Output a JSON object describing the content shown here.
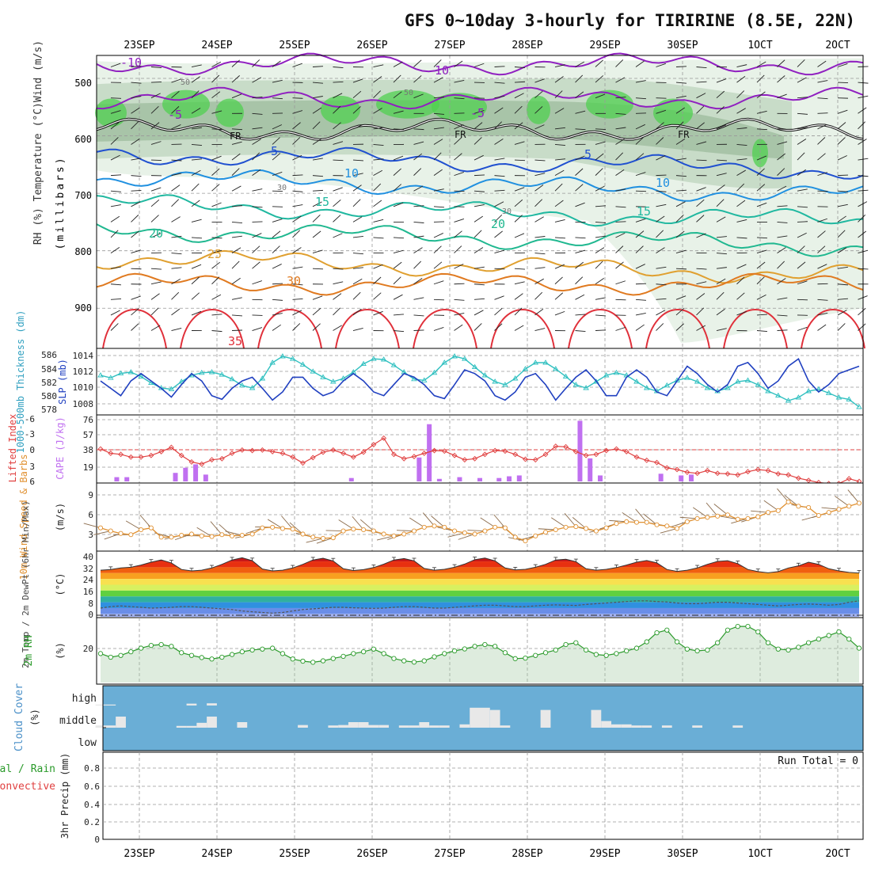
{
  "title": "GFS 0~10day 3-hourly for TIRIRINE (8.5E, 22N)",
  "date_labels": [
    "23SEP",
    "24SEP",
    "25SEP",
    "26SEP",
    "27SEP",
    "28SEP",
    "29SEP",
    "30SEP",
    "1OCT",
    "2OCT"
  ],
  "colors": {
    "temp_35": "#e0303a",
    "temp_30": "#e07a20",
    "temp_25": "#e0a030",
    "temp_20": "#20b890",
    "temp_15": "#20b8a0",
    "temp_10": "#2090e0",
    "temp_5": "#2050d0",
    "temp_m5": "#9020c0",
    "rh_green": "#50d050",
    "slp": "#2040c0",
    "thickness": "#30c0c0",
    "lifted_index": "#e04040",
    "cape": "#c070f0",
    "wind": "#e09030",
    "cloud": "#6aaed6",
    "rh2m": "#2a9a2a"
  },
  "chart_data": [
    {
      "panel": "upper-air",
      "type": "line",
      "title": "Temperature (°C) / Wind (m/s) / RH (%)",
      "ylabel_left": "RH (%)  Temperature (°C)Wind (m/s)",
      "ylabel_inner": "(millibars)",
      "y_ticks": [
        500,
        600,
        700,
        800,
        900
      ],
      "ylim": [
        970,
        460
      ],
      "contour_labels": [
        {
          "text": "-10",
          "color_key": "temp_m5"
        },
        {
          "text": "-10",
          "color_key": "temp_m5"
        },
        {
          "text": "-5",
          "color_key": "temp_m5"
        },
        {
          "text": "-5",
          "color_key": "temp_m5"
        },
        {
          "text": "FR",
          "color_key": ""
        },
        {
          "text": "FR",
          "color_key": ""
        },
        {
          "text": "FR",
          "color_key": ""
        },
        {
          "text": "5",
          "color_key": "temp_5"
        },
        {
          "text": "5",
          "color_key": "temp_5"
        },
        {
          "text": "10",
          "color_key": "temp_10"
        },
        {
          "text": "10",
          "color_key": "temp_10"
        },
        {
          "text": "15",
          "color_key": "temp_15"
        },
        {
          "text": "15",
          "color_key": "temp_15"
        },
        {
          "text": "20",
          "color_key": "temp_20"
        },
        {
          "text": "20",
          "color_key": "temp_20"
        },
        {
          "text": "25",
          "color_key": "temp_25"
        },
        {
          "text": "30",
          "color_key": "temp_30"
        },
        {
          "text": "35",
          "color_key": "temp_35"
        },
        {
          "text": "30",
          "color_key": ""
        },
        {
          "text": "30",
          "color_key": ""
        },
        {
          "text": "50",
          "color_key": ""
        },
        {
          "text": "50",
          "color_key": ""
        }
      ],
      "isotherms_mb": [
        {
          "label": "-10",
          "mb": 475,
          "color_key": "temp_m5"
        },
        {
          "label": "-5",
          "mb": 535,
          "color_key": "temp_m5"
        },
        {
          "label": "0",
          "mb": 590,
          "color_key": ""
        },
        {
          "label": "5",
          "mb": 630,
          "color_key": "temp_5"
        },
        {
          "label": "10",
          "mb": 672,
          "color_key": "temp_10"
        },
        {
          "label": "15",
          "mb": 718,
          "color_key": "temp_15"
        },
        {
          "label": "20",
          "mb": 762,
          "color_key": "temp_20"
        },
        {
          "label": "25",
          "mb": 812,
          "color_key": "temp_25"
        },
        {
          "label": "30",
          "mb": 858,
          "color_key": "temp_30"
        }
      ]
    },
    {
      "panel": "slp-thickness",
      "type": "line",
      "ylabel_left": "1000-500mb Thickness (dm)",
      "ylabel_right": "SLP (mb)",
      "left_ticks": [
        "586",
        "584",
        "582",
        "580",
        "578"
      ],
      "right_ticks": [
        "1014",
        "1012",
        "1010",
        "1008"
      ],
      "left_range": [
        577,
        587
      ],
      "right_range": [
        1006.6,
        1015.2
      ],
      "series": [
        {
          "name": "SLP",
          "color_key": "slp",
          "values": [
            1011.0,
            1010.0,
            1009.0,
            1011.0,
            1012.0,
            1011.0,
            1010.0,
            1008.8,
            1010.5,
            1012.0,
            1011.0,
            1009.0,
            1008.5,
            1010.0,
            1011.0,
            1011.5,
            1010.0,
            1008.4,
            1009.5,
            1011.5,
            1011.5,
            1010.0,
            1009.0,
            1009.5,
            1011.0,
            1012.0,
            1011.0,
            1009.5,
            1009.0,
            1010.5,
            1012.0,
            1011.5,
            1010.5,
            1009.0,
            1008.6,
            1010.5,
            1012.5,
            1012.0,
            1011.0,
            1009.0,
            1008.4,
            1009.5,
            1011.5,
            1012.0,
            1010.5,
            1008.4,
            1010.0,
            1011.5,
            1012.5,
            1011.0,
            1009.0,
            1009.0,
            1011.5,
            1012.5,
            1011.5,
            1009.5,
            1009.0,
            1011.0,
            1013.0,
            1012.0,
            1010.5,
            1009.5,
            1010.5,
            1013.0,
            1013.5,
            1012.0,
            1010.0,
            1011.0,
            1013.0,
            1014.0,
            1011.0,
            1009.5,
            1010.5,
            1012.0,
            1012.5,
            1013.0
          ]
        },
        {
          "name": "Thickness",
          "color_key": "thickness",
          "values": [
            583.0,
            582.6,
            583.3,
            583.5,
            582.8,
            581.8,
            581.0,
            580.8,
            582.0,
            583.0,
            583.4,
            583.5,
            583.1,
            582.4,
            581.4,
            581.0,
            582.5,
            585.0,
            586.0,
            585.6,
            584.7,
            583.6,
            582.7,
            582.0,
            582.5,
            583.5,
            584.8,
            585.6,
            585.5,
            584.6,
            583.5,
            582.4,
            582.2,
            583.4,
            585.0,
            586.0,
            585.6,
            584.3,
            583.0,
            582.0,
            581.5,
            582.5,
            584.0,
            585.0,
            585.0,
            584.0,
            582.8,
            581.5,
            581.0,
            582.0,
            583.0,
            583.4,
            583.0,
            582.0,
            581.0,
            580.5,
            581.4,
            582.2,
            582.6,
            582.0,
            581.0,
            580.5,
            581.0,
            582.0,
            582.2,
            581.5,
            580.5,
            579.8,
            579.0,
            579.5,
            580.5,
            580.8,
            580.2,
            579.5,
            579.2,
            578.0
          ]
        }
      ]
    },
    {
      "panel": "cape-li",
      "type": "bar",
      "ylabel_left": "Lifted Index",
      "ylabel_right": "CAPE (J/kg)",
      "li_ticks": [
        "-6",
        "-3",
        "0",
        "3",
        "6"
      ],
      "cape_ticks": [
        "76",
        "57",
        "38",
        "19"
      ],
      "li_range": [
        -6,
        6
      ],
      "cape_range": [
        0,
        76
      ],
      "cape_bars": [
        {
          "t": 1.6,
          "v": 5
        },
        {
          "t": 2.6,
          "v": 5
        },
        {
          "t": 7.4,
          "v": 10
        },
        {
          "t": 8.4,
          "v": 16
        },
        {
          "t": 9.4,
          "v": 20
        },
        {
          "t": 10.4,
          "v": 8
        },
        {
          "t": 24.8,
          "v": 4
        },
        {
          "t": 31.5,
          "v": 28
        },
        {
          "t": 32.5,
          "v": 67
        },
        {
          "t": 33.5,
          "v": 3
        },
        {
          "t": 35.5,
          "v": 5
        },
        {
          "t": 37.5,
          "v": 4
        },
        {
          "t": 39.4,
          "v": 4
        },
        {
          "t": 40.4,
          "v": 6
        },
        {
          "t": 41.4,
          "v": 7
        },
        {
          "t": 47.4,
          "v": 71
        },
        {
          "t": 48.4,
          "v": 27
        },
        {
          "t": 49.4,
          "v": 7
        },
        {
          "t": 55.4,
          "v": 9
        },
        {
          "t": 57.4,
          "v": 7
        },
        {
          "t": 58.4,
          "v": 8
        }
      ],
      "lifted_index": [
        0.0,
        0.8,
        1.0,
        1.5,
        1.5,
        1.2,
        0.5,
        -0.3,
        1.2,
        2.4,
        2.8,
        2.0,
        1.8,
        0.8,
        0.2,
        0.3,
        0.2,
        0.5,
        0.8,
        1.5,
        2.6,
        1.6,
        0.6,
        0.2,
        0.8,
        1.5,
        0.6,
        -0.8,
        -2.0,
        1.0,
        1.8,
        1.4,
        0.8,
        0.3,
        0.4,
        1.2,
        2.0,
        1.8,
        1.0,
        0.3,
        0.4,
        1.0,
        1.9,
        2.0,
        1.0,
        -0.5,
        -0.4,
        0.5,
        1.2,
        1.0,
        0.3,
        0.0,
        0.5,
        1.5,
        2.1,
        2.5,
        3.5,
        3.8,
        4.3,
        4.5,
        4.0,
        4.5,
        4.6,
        4.8,
        4.2,
        3.8,
        4.0,
        4.6,
        4.8,
        5.4,
        5.8,
        6.2,
        6.4,
        6.4,
        5.5,
        6.0
      ]
    },
    {
      "panel": "wind-10m",
      "type": "line",
      "ylabel_left": "10m Wind Speed & Barbs",
      "ylabel_right": "(m/s)",
      "ticks": [
        "9",
        "6",
        "3"
      ],
      "range": [
        0,
        10.5
      ],
      "speed": [
        3.5,
        3.0,
        2.6,
        2.4,
        3.2,
        3.5,
        2.0,
        2.0,
        2.3,
        2.5,
        2.2,
        2.1,
        2.4,
        2.2,
        2.3,
        2.5,
        3.5,
        3.6,
        3.4,
        3.3,
        2.5,
        2.0,
        1.8,
        1.9,
        3.0,
        3.3,
        3.2,
        3.0,
        2.5,
        2.2,
        2.5,
        3.0,
        3.6,
        3.8,
        3.6,
        3.0,
        2.7,
        2.5,
        3.0,
        3.6,
        3.5,
        2.0,
        1.4,
        2.2,
        2.8,
        3.2,
        3.6,
        3.7,
        3.4,
        3.0,
        3.5,
        4.2,
        4.5,
        4.4,
        4.4,
        4.0,
        3.8,
        3.4,
        4.5,
        5.0,
        5.2,
        5.4,
        5.6,
        4.9,
        5.0,
        5.3,
        6.0,
        6.3,
        7.7,
        7.0,
        6.8,
        5.5,
        6.0,
        6.5,
        7.0,
        7.5
      ]
    },
    {
      "panel": "temp-2m",
      "type": "area",
      "ylabel_left": "2m Temp / 2m DewPt (6hr Min/Max)",
      "ylabel_right": "(°C)",
      "ticks": [
        "40",
        "32",
        "24",
        "16",
        "8",
        "0"
      ],
      "range": [
        -2,
        42
      ],
      "temp": [
        30.0,
        30.5,
        31.5,
        32.0,
        33.5,
        35.5,
        37.0,
        35.0,
        30.5,
        29.5,
        30.0,
        31.5,
        34.0,
        37.0,
        38.5,
        36.5,
        30.8,
        29.5,
        30.0,
        31.5,
        34.0,
        37.0,
        38.2,
        36.3,
        31.0,
        29.8,
        30.4,
        31.8,
        34.1,
        37.0,
        38.0,
        36.4,
        31.2,
        30.0,
        30.6,
        32.0,
        34.2,
        37.2,
        38.3,
        36.4,
        31.5,
        30.2,
        30.6,
        32.0,
        34.0,
        37.0,
        37.5,
        35.8,
        31.0,
        30.0,
        30.6,
        31.8,
        33.5,
        35.5,
        36.6,
        35.0,
        30.5,
        29.2,
        30.0,
        31.5,
        34.0,
        36.0,
        36.5,
        34.5,
        30.5,
        29.0,
        28.2,
        29.0,
        31.5,
        33.0,
        35.5,
        34.0,
        31.0,
        29.5,
        28.5,
        28.0
      ],
      "dewpoint": [
        4.0,
        5.0,
        5.5,
        5.0,
        4.5,
        4.0,
        4.2,
        4.5,
        5.0,
        5.0,
        4.5,
        4.0,
        3.5,
        3.0,
        2.0,
        1.5,
        1.0,
        0.5,
        1.0,
        2.0,
        3.0,
        3.5,
        4.0,
        4.5,
        4.5,
        4.2,
        4.0,
        3.8,
        4.0,
        4.5,
        5.0,
        5.0,
        4.5,
        4.0,
        4.0,
        4.5,
        5.0,
        5.5,
        6.0,
        6.0,
        5.5,
        5.0,
        5.0,
        5.5,
        6.0,
        6.2,
        6.0,
        5.8,
        6.5,
        7.0,
        7.5,
        8.0,
        8.5,
        9.0,
        9.0,
        8.5,
        8.2,
        7.5,
        7.0,
        7.0,
        7.5,
        8.0,
        8.0,
        7.5,
        7.0,
        6.5,
        6.0,
        5.5,
        6.0,
        6.5,
        6.8,
        6.5,
        6.0,
        6.5,
        8.0,
        9.0
      ]
    },
    {
      "panel": "rh-2m",
      "type": "area",
      "ylabel_left": "2m RH",
      "ylabel_right": "(%)",
      "ticks": [
        "20"
      ],
      "range": [
        0,
        35
      ],
      "values": [
        16.0,
        14.0,
        15.0,
        17.0,
        19.0,
        20.5,
        21.0,
        20.0,
        16.5,
        15.0,
        13.8,
        13.0,
        14.0,
        15.5,
        17.0,
        18.0,
        18.5,
        19.0,
        16.0,
        13.0,
        11.8,
        11.2,
        12.0,
        13.3,
        14.5,
        16.0,
        17.0,
        18.5,
        16.0,
        13.3,
        12.0,
        11.3,
        12.0,
        14.2,
        16.0,
        17.5,
        18.6,
        20.0,
        21.0,
        20.0,
        16.5,
        13.2,
        13.5,
        15.0,
        16.5,
        18.0,
        21.0,
        22.0,
        18.0,
        15.5,
        15.0,
        16.0,
        17.5,
        19.0,
        22.5,
        27.5,
        29.0,
        22.5,
        18.5,
        17.5,
        18.0,
        22.0,
        29.0,
        31.0,
        31.0,
        28.0,
        22.0,
        18.5,
        18.0,
        19.5,
        22.0,
        24.0,
        26.0,
        28.0,
        24.0,
        19.0
      ]
    },
    {
      "panel": "cloud-cover",
      "type": "bar",
      "ylabel_left": "Cloud Cover",
      "ylabel_right": "(%)",
      "layer_labels": [
        "high",
        "middle",
        "low"
      ],
      "high_blocks": [
        {
          "t": 0,
          "v": 15
        },
        {
          "t": 1,
          "v": 15
        },
        {
          "t": 9,
          "v": 30
        },
        {
          "t": 11,
          "v": 35
        }
      ],
      "middle_blocks": [
        {
          "t": 0,
          "v": 10
        },
        {
          "t": 1,
          "v": 10
        },
        {
          "t": 2,
          "v": 50
        },
        {
          "t": 8,
          "v": 8
        },
        {
          "t": 9,
          "v": 8
        },
        {
          "t": 10,
          "v": 22
        },
        {
          "t": 11,
          "v": 50
        },
        {
          "t": 14,
          "v": 25
        },
        {
          "t": 20,
          "v": 12
        },
        {
          "t": 23,
          "v": 10
        },
        {
          "t": 24,
          "v": 12
        },
        {
          "t": 25,
          "v": 25
        },
        {
          "t": 26,
          "v": 25
        },
        {
          "t": 27,
          "v": 12
        },
        {
          "t": 28,
          "v": 12
        },
        {
          "t": 30,
          "v": 10
        },
        {
          "t": 31,
          "v": 10
        },
        {
          "t": 32,
          "v": 25
        },
        {
          "t": 33,
          "v": 10
        },
        {
          "t": 34,
          "v": 10
        },
        {
          "t": 36,
          "v": 15
        },
        {
          "t": 37,
          "v": 90
        },
        {
          "t": 38,
          "v": 90
        },
        {
          "t": 39,
          "v": 80
        },
        {
          "t": 40,
          "v": 10
        },
        {
          "t": 44,
          "v": 80
        },
        {
          "t": 49,
          "v": 80
        },
        {
          "t": 50,
          "v": 30
        },
        {
          "t": 51,
          "v": 15
        },
        {
          "t": 52,
          "v": 15
        },
        {
          "t": 53,
          "v": 10
        },
        {
          "t": 54,
          "v": 10
        },
        {
          "t": 56,
          "v": 10
        },
        {
          "t": 59,
          "v": 10
        },
        {
          "t": 63,
          "v": 10
        }
      ]
    },
    {
      "panel": "precip-3hr",
      "type": "bar",
      "ylabel_left": "Total / Rain / Convective",
      "ylabel_right": "3hr Precip (mm)",
      "label_total": "Total",
      "label_rain": "Rain",
      "label_convective": "Convective",
      "ticks": [
        "0.8",
        "0.6",
        "0.4",
        "0.2",
        "0"
      ],
      "range": [
        0,
        0.95
      ],
      "run_total": "Run Total = 0",
      "values": []
    }
  ]
}
